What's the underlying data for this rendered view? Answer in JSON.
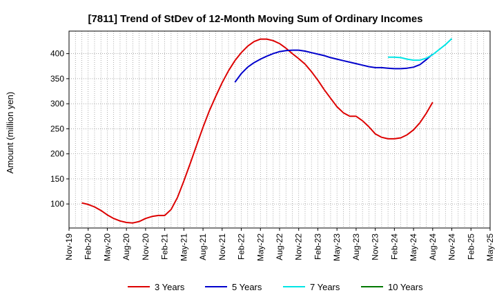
{
  "chart_data": {
    "type": "line",
    "title": "[7811]  Trend of StDev of 12-Month Moving Sum of Ordinary Incomes",
    "xlabel": "",
    "ylabel": "Amount (million yen)",
    "ylim": [
      52,
      445
    ],
    "yticks": [
      100,
      150,
      200,
      250,
      300,
      350,
      400
    ],
    "xticks": [
      "Nov-19",
      "Feb-20",
      "May-20",
      "Aug-20",
      "Nov-20",
      "Feb-21",
      "May-21",
      "Aug-21",
      "Nov-21",
      "Feb-22",
      "May-22",
      "Aug-22",
      "Nov-22",
      "Feb-23",
      "May-23",
      "Aug-23",
      "Nov-23",
      "Feb-24",
      "May-24",
      "Aug-24",
      "Nov-24",
      "Feb-25",
      "May-25"
    ],
    "grid": true,
    "legend_position": "bottom",
    "series": [
      {
        "name": "3 Years",
        "color": "#dd0000",
        "start_month": 2,
        "values": [
          102,
          99,
          94,
          87,
          78,
          71,
          66,
          63,
          62,
          65,
          71,
          75,
          77,
          77,
          89,
          113,
          146,
          181,
          217,
          253,
          286,
          315,
          342,
          366,
          386,
          402,
          415,
          424,
          429,
          429,
          426,
          420,
          411,
          400,
          390,
          379,
          364,
          347,
          328,
          311,
          294,
          282,
          275,
          275,
          266,
          254,
          240,
          233,
          230,
          230,
          232,
          238,
          248,
          262,
          281,
          303
        ]
      },
      {
        "name": "5 Years",
        "color": "#0000cc",
        "start_month": 26,
        "values": [
          343,
          360,
          373,
          382,
          389,
          395,
          400,
          404,
          406,
          407,
          407,
          405,
          402,
          399,
          396,
          392,
          389,
          386,
          383,
          380,
          377,
          374,
          372,
          372,
          371,
          370,
          370,
          371,
          373,
          378,
          388,
          399
        ]
      },
      {
        "name": "7 Years",
        "color": "#00e5e5",
        "start_month": 50,
        "values": [
          393,
          393,
          392,
          389,
          387,
          387,
          391,
          398,
          408,
          418,
          430
        ]
      },
      {
        "name": "10 Years",
        "color": "#007700",
        "start_month": 0,
        "values": []
      }
    ]
  }
}
